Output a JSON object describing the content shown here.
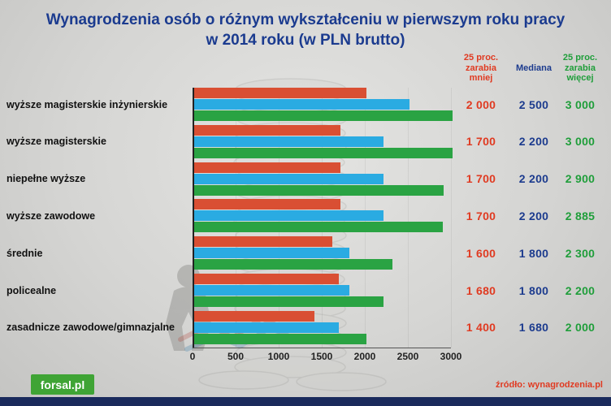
{
  "title": {
    "line1": "Wynagrodzenia osób o różnym wykształceniu w pierwszym roku pracy",
    "line2": "w 2014 roku (w PLN brutto)"
  },
  "columns": {
    "less": [
      "25 proc.",
      "zarabia",
      "mniej"
    ],
    "median": "Mediana",
    "more": [
      "25 proc.",
      "zarabia",
      "więcej"
    ]
  },
  "chart_data": {
    "type": "bar",
    "orientation": "horizontal",
    "title": "Wynagrodzenia osób o różnym wykształceniu w pierwszym roku pracy w 2014 roku (w PLN brutto)",
    "xlabel": "",
    "ylabel": "",
    "xlim": [
      0,
      3000
    ],
    "xticks": [
      "0",
      "500",
      "1000",
      "1500",
      "2000",
      "2500",
      "3000"
    ],
    "grid": false,
    "legend_position": "top-right-columns",
    "categories": [
      "wyższe magisterskie inżynierskie",
      "wyższe magisterskie",
      "niepełne wyższe",
      "wyższe zawodowe",
      "średnie",
      "policealne",
      "zasadnicze zawodowe/gimnazjalne"
    ],
    "series": [
      {
        "name": "25 proc. zarabia mniej",
        "color": "#d94f33",
        "values": [
          2000,
          1700,
          1700,
          1700,
          1600,
          1680,
          1400
        ],
        "labels": [
          "2 000",
          "1 700",
          "1 700",
          "1 700",
          "1 600",
          "1 680",
          "1 400"
        ]
      },
      {
        "name": "Mediana",
        "color": "#2aabe2",
        "values": [
          2500,
          2200,
          2200,
          2200,
          1800,
          1800,
          1680
        ],
        "labels": [
          "2 500",
          "2 200",
          "2 200",
          "2 200",
          "1 800",
          "1 800",
          "1 680"
        ]
      },
      {
        "name": "25 proc. zarabia więcej",
        "color": "#2aa343",
        "values": [
          3000,
          3000,
          2900,
          2885,
          2300,
          2200,
          2000
        ],
        "labels": [
          "3 000",
          "3 000",
          "2 900",
          "2 885",
          "2 300",
          "2 200",
          "2 000"
        ]
      }
    ]
  },
  "footer": {
    "logo": "forsal.pl",
    "source": "źródło: wynagrodzenia.pl"
  },
  "colors": {
    "title": "#1b3b8f",
    "value_less": "#e03a21",
    "value_median": "#1c3b8e",
    "value_more": "#1f9e3a",
    "bar_less": "#d94f33",
    "bar_median": "#2aabe2",
    "bar_more": "#2aa343",
    "logo_bg": "#3fa435",
    "source": "#e03a21",
    "bottom_bar": "#1a2a5c"
  }
}
